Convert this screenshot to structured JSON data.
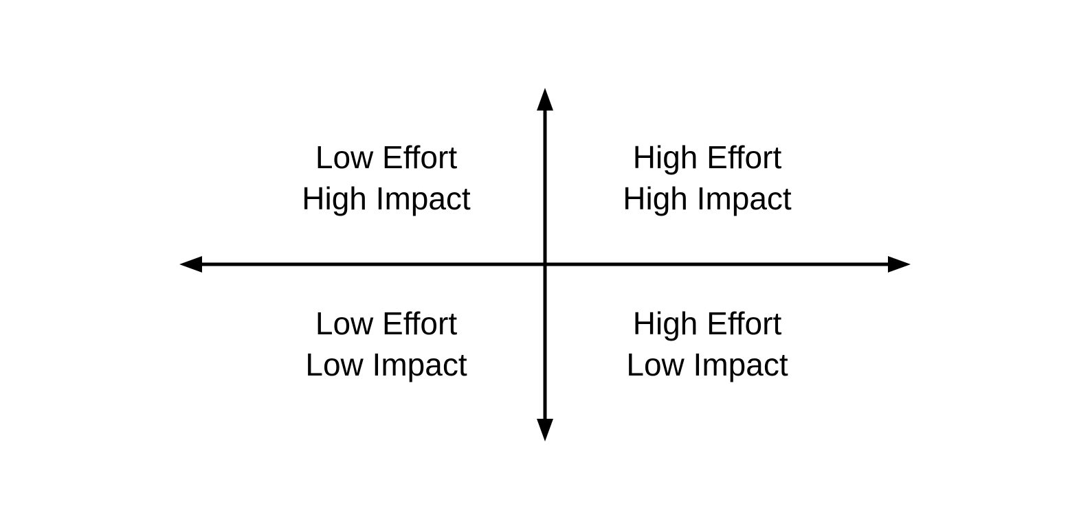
{
  "quadrants": {
    "top_left": {
      "line1": "Low Effort",
      "line2": "High Impact"
    },
    "top_right": {
      "line1": "High Effort",
      "line2": "High Impact"
    },
    "bottom_left": {
      "line1": "Low Effort",
      "line2": "Low Impact"
    },
    "bottom_right": {
      "line1": "High Effort",
      "line2": "Low Impact"
    }
  },
  "colors": {
    "axis": "#000000",
    "text": "#000000",
    "background": "#ffffff"
  }
}
